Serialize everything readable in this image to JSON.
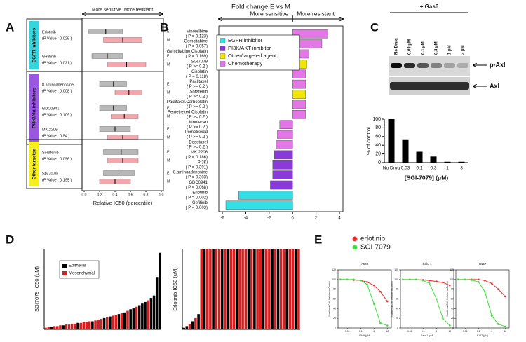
{
  "chart_data": [
    {
      "type": "box",
      "panel": "A",
      "annotations": [
        "More sensitive",
        "More resistant"
      ],
      "xlabel": "Relative IC50 (percentile)",
      "xlim": [
        0,
        1
      ],
      "xticks": [
        {
          "value": 0,
          "label": "0.0"
        },
        0.2,
        0.4,
        0.6,
        0.8,
        {
          "value": 1,
          "label": "1.0"
        }
      ],
      "groups": [
        {
          "name": "EGFR inhibitors",
          "color": "#33d6dc",
          "drugs": [
            {
              "name": "Erlotinib",
              "note": "(P Value : 0.026 )",
              "boxes": [
                {
                  "name": "E",
                  "color": "#b8b8b8",
                  "values": [
                    0.06,
                    0.28,
                    0.5
                  ]
                },
                {
                  "name": "M",
                  "color": "#f4a6ad",
                  "values": [
                    0.25,
                    0.5,
                    0.75
                  ]
                }
              ]
            },
            {
              "name": "Gefitinib",
              "note": "(P Value : 0.021 )",
              "boxes": [
                {
                  "name": "E",
                  "color": "#b8b8b8",
                  "values": [
                    0.1,
                    0.3,
                    0.5
                  ]
                },
                {
                  "name": "M",
                  "color": "#f4a6ad",
                  "values": [
                    0.3,
                    0.55,
                    0.8
                  ]
                }
              ]
            }
          ]
        },
        {
          "name": "PI3K/Akt inhibitors",
          "color": "#9a58e0",
          "drugs": [
            {
              "name": "8.aminoadenosine",
              "note": "(P Value : 0.008 )",
              "boxes": [
                {
                  "name": "E",
                  "color": "#b8b8b8",
                  "values": [
                    0.2,
                    0.38,
                    0.55
                  ]
                },
                {
                  "name": "M",
                  "color": "#f4a6ad",
                  "values": [
                    0.4,
                    0.58,
                    0.75
                  ]
                }
              ]
            },
            {
              "name": "GDC0941",
              "note": "(P Value : 0.109 )",
              "boxes": [
                {
                  "name": "E",
                  "color": "#b8b8b8",
                  "values": [
                    0.2,
                    0.38,
                    0.55
                  ]
                },
                {
                  "name": "M",
                  "color": "#f4a6ad",
                  "values": [
                    0.35,
                    0.52,
                    0.7
                  ]
                }
              ]
            },
            {
              "name": "MK.2206",
              "note": "(P Value : 0.54 )",
              "boxes": [
                {
                  "name": "E",
                  "color": "#b8b8b8",
                  "values": [
                    0.2,
                    0.4,
                    0.6
                  ]
                },
                {
                  "name": "M",
                  "color": "#f4a6ad",
                  "values": [
                    0.3,
                    0.5,
                    0.7
                  ]
                }
              ]
            }
          ]
        },
        {
          "name": "Other targeted",
          "color": "#f6ef1a",
          "drugs": [
            {
              "name": "Sorafenib",
              "note": "(P Value : 0.096 )",
              "boxes": [
                {
                  "name": "E",
                  "color": "#b8b8b8",
                  "values": [
                    0.25,
                    0.48,
                    0.7
                  ]
                },
                {
                  "name": "M",
                  "color": "#f4a6ad",
                  "values": [
                    0.3,
                    0.5,
                    0.7
                  ]
                }
              ]
            },
            {
              "name": "SGI7079",
              "note": "(P Value : 0.195 )",
              "boxes": [
                {
                  "name": "E",
                  "color": "#b8b8b8",
                  "values": [
                    0.25,
                    0.45,
                    0.65
                  ]
                },
                {
                  "name": "M",
                  "color": "#f4a6ad",
                  "values": [
                    0.2,
                    0.4,
                    0.6
                  ]
                }
              ]
            }
          ]
        }
      ]
    },
    {
      "type": "bar",
      "horizontal": true,
      "panel": "B",
      "title": "Fold change E vs M",
      "annotations": [
        "More sensitive",
        "More resistant"
      ],
      "categories": [
        "Vinorelbine",
        "Gemcitabine",
        "Gemcitabine.Cisplatin",
        "SGI7079",
        "Cisplatin",
        "Paclitaxel",
        "Sorafenib",
        "Paclitaxel.Carboplatin",
        "Pemetrexed.Cisplatin",
        "Irinotecan",
        "Pemetrexed",
        "Docetaxel",
        "MK.2206",
        "PI3Ki",
        "8.aminoadenosine",
        "GDC0941",
        "Erlotinib",
        "Gefitinib"
      ],
      "notes": [
        "( P = 0.123)",
        "( P = 0.057)",
        "( P = 0.169)",
        "( P >= 0.2 )",
        "( P = 0.118)",
        "( P >= 0.2 )",
        "( P >= 0.2 )",
        "( P >= 0.2 )",
        "( P >= 0.2 )",
        "( P >= 0.2 )",
        "( P >= 0.2 )",
        "( P >= 0.2 )",
        "( P = 0.186)",
        "( P = 0.391)",
        "( P = 0.303)",
        "( P = 0.068)",
        "( P = 0.002)",
        "( P = 0.003)"
      ],
      "values": [
        3.0,
        2.5,
        1.4,
        1.2,
        1.1,
        1.1,
        1.1,
        1.1,
        1.1,
        -1.1,
        -1.3,
        -1.4,
        -1.55,
        -1.7,
        -1.7,
        -1.9,
        -4.6,
        -5.7
      ],
      "colors": [
        "#e377e6",
        "#e377e6",
        "#e377e6",
        "#f2e600",
        "#e377e6",
        "#e377e6",
        "#f2e600",
        "#e377e6",
        "#e377e6",
        "#e377e6",
        "#e377e6",
        "#e377e6",
        "#8a3ad8",
        "#8a3ad8",
        "#8a3ad8",
        "#8a3ad8",
        "#33e0e6",
        "#33e0e6"
      ],
      "legend": [
        {
          "name": "EGFR inhibitor",
          "color": "#33e0e6"
        },
        {
          "name": "PI3K/AKT inhibitor",
          "color": "#8a3ad8"
        },
        {
          "name": "Other/targeted agent",
          "color": "#f2e600"
        },
        {
          "name": "Chemotherapy",
          "color": "#e377e6"
        }
      ],
      "xlim": [
        -6,
        4
      ],
      "xticks": [
        -6,
        -4,
        -2,
        0,
        2,
        4
      ]
    },
    {
      "type": "bar",
      "categories": [
        "No Drug",
        "0.03",
        "0.1",
        "0.3",
        "1",
        "3"
      ],
      "values": [
        100,
        52,
        25,
        14,
        2,
        2
      ],
      "color": "#000000",
      "ylim": [
        0,
        100
      ],
      "yticks": [
        0,
        20,
        40,
        60,
        80,
        100
      ],
      "xlabel": "[SGI-7079] (μM)",
      "ylabel": "% of control"
    },
    {
      "type": "bar",
      "panel": "D",
      "ylabel": "SGI7079 IC50 (uM)",
      "ylim": [
        0,
        10
      ],
      "series": [
        {
          "name": "Epithelial",
          "color": "#000000",
          "values": [
            null,
            null,
            0.3,
            null,
            null,
            null,
            0.5,
            null,
            null,
            null,
            null,
            0.8,
            null,
            null,
            null,
            null,
            1.0,
            null,
            null,
            null,
            1.4,
            null,
            1.6,
            null,
            null,
            1.9,
            null,
            2.1,
            null,
            2.5,
            2.6,
            null,
            3.0,
            3.2,
            3.4,
            null,
            3.9,
            4.2,
            6.5,
            9.5
          ]
        },
        {
          "name": "Mesenchymal",
          "color": "#d42020",
          "values": [
            0.2,
            0.3,
            null,
            0.4,
            0.4,
            0.5,
            null,
            0.6,
            0.6,
            0.7,
            0.7,
            null,
            0.8,
            0.9,
            0.9,
            1.0,
            null,
            1.1,
            1.2,
            1.3,
            null,
            1.5,
            null,
            1.7,
            1.8,
            null,
            2.0,
            null,
            2.3,
            null,
            null,
            2.8,
            null,
            null,
            null,
            3.6,
            null,
            null,
            null,
            null
          ]
        }
      ]
    },
    {
      "type": "bar",
      "ylabel": "Erlotinib IC50 (uM)",
      "ylim": [
        0,
        10
      ],
      "series": [
        {
          "color": "#000000",
          "values": [
            0.2,
            0.4,
            null,
            1.0,
            null,
            1.9,
            null,
            10,
            null,
            null,
            10,
            null,
            null,
            10,
            null,
            10,
            null,
            null,
            10,
            null,
            null,
            null,
            10,
            null,
            10,
            null,
            null,
            10,
            null,
            null,
            10,
            null,
            10,
            null,
            null,
            10,
            null,
            null,
            10,
            null
          ]
        },
        {
          "color": "#d42020",
          "values": [
            null,
            null,
            0.7,
            null,
            1.4,
            null,
            10,
            null,
            10,
            10,
            null,
            10,
            10,
            null,
            10,
            null,
            10,
            10,
            null,
            10,
            10,
            10,
            null,
            10,
            null,
            10,
            10,
            null,
            10,
            10,
            null,
            10,
            null,
            10,
            10,
            null,
            10,
            10,
            null,
            10
          ]
        }
      ]
    },
    {
      "type": "line",
      "panel": "E",
      "title": "A549",
      "xlabel": "A549 (μM)",
      "ylabel": "Number of Cells Relative to Control",
      "xscale": "log",
      "x": [
        0.003,
        0.01,
        0.03,
        0.1,
        0.3,
        1,
        3,
        10
      ],
      "xlim": [
        0.002,
        20
      ],
      "xticks": [
        0.01,
        0.1,
        1,
        10
      ],
      "ylim": [
        0,
        120
      ],
      "yticks": [
        0,
        20,
        40,
        60,
        80,
        100,
        120
      ],
      "series": [
        {
          "name": "erlotinib",
          "color": "#e53030",
          "values": [
            100,
            100,
            99,
            98,
            95,
            88,
            75,
            55
          ]
        },
        {
          "name": "SGI-7079",
          "color": "#3ce03c",
          "values": [
            100,
            100,
            100,
            98,
            90,
            50,
            10,
            5
          ]
        }
      ]
    },
    {
      "type": "line",
      "title": "Calu-1",
      "xlabel": "Calu-1 (μM)",
      "ylabel": "Number of Cells Relative to Control",
      "xscale": "log",
      "x": [
        0.003,
        0.01,
        0.03,
        0.1,
        0.3,
        1,
        3,
        10
      ],
      "xlim": [
        0.002,
        20
      ],
      "xticks": [
        0.01,
        0.1,
        1,
        10
      ],
      "ylim": [
        0,
        120
      ],
      "yticks": [
        0,
        20,
        40,
        60,
        80,
        100,
        120
      ],
      "series": [
        {
          "color": "#e53030",
          "values": [
            100,
            100,
            100,
            99,
            98,
            96,
            94,
            88
          ]
        },
        {
          "color": "#3ce03c",
          "values": [
            100,
            100,
            100,
            98,
            92,
            60,
            20,
            5
          ]
        }
      ]
    },
    {
      "type": "line",
      "title": "H157",
      "xlabel": "H157 (μM)",
      "ylabel": "Number of Cells Relative to Control",
      "xscale": "log",
      "x": [
        0.003,
        0.01,
        0.03,
        0.1,
        0.3,
        1,
        3,
        10
      ],
      "xlim": [
        0.002,
        20
      ],
      "xticks": [
        0.01,
        0.1,
        1,
        10
      ],
      "ylim": [
        0,
        120
      ],
      "yticks": [
        0,
        20,
        40,
        60,
        80,
        100,
        120
      ],
      "series": [
        {
          "color": "#e53030",
          "values": [
            100,
            100,
            100,
            100,
            98,
            92,
            80,
            65
          ]
        },
        {
          "color": "#3ce03c",
          "values": [
            100,
            100,
            99,
            95,
            75,
            25,
            8,
            3
          ]
        }
      ]
    }
  ],
  "blot": {
    "panel": "C",
    "treatment": "+ Gas6",
    "lanes": [
      "No Drug",
      "0.03 μM",
      "0.1 μM",
      "0.3 μM",
      "1 μM",
      "3 μM"
    ],
    "bands": [
      "p-Axl",
      "Axl"
    ]
  }
}
